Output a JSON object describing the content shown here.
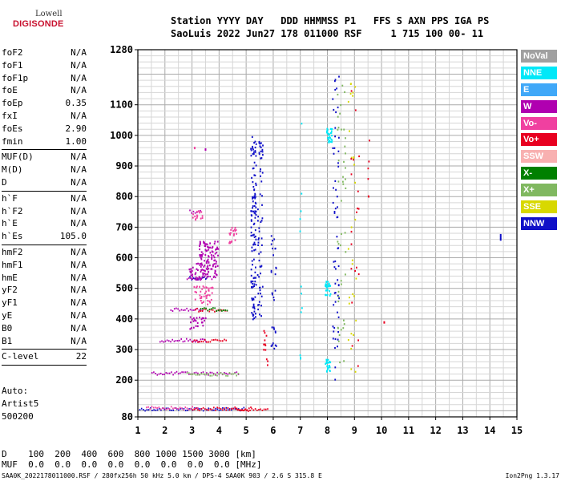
{
  "logo": {
    "line1": "Lowell",
    "line2": "DIGISONDE"
  },
  "header": {
    "row1": "Station YYYY DAY   DDD HHMMSS P1   FFS S AXN PPS IGA PS",
    "row2": "SaoLuis 2022 Jun27 178 011000 RSF     1 715 100 00- 11"
  },
  "params": [
    [
      {
        "name": "foF2",
        "value": "N/A"
      },
      {
        "name": "foF1",
        "value": "N/A"
      },
      {
        "name": "foF1p",
        "value": "N/A"
      },
      {
        "name": "foE",
        "value": "N/A"
      },
      {
        "name": "foEp",
        "value": "0.35"
      },
      {
        "name": "fxI",
        "value": "N/A"
      },
      {
        "name": "foEs",
        "value": "2.90"
      },
      {
        "name": "fmin",
        "value": "1.00"
      }
    ],
    [
      {
        "name": "MUF(D)",
        "value": "N/A"
      },
      {
        "name": "M(D)",
        "value": "N/A"
      },
      {
        "name": "D",
        "value": "N/A"
      }
    ],
    [
      {
        "name": "h`F",
        "value": "N/A"
      },
      {
        "name": "h`F2",
        "value": "N/A"
      },
      {
        "name": "h`E",
        "value": "N/A"
      },
      {
        "name": "h`Es",
        "value": "105.0"
      }
    ],
    [
      {
        "name": "hmF2",
        "value": "N/A"
      },
      {
        "name": "hmF1",
        "value": "N/A"
      },
      {
        "name": "hmE",
        "value": "N/A"
      },
      {
        "name": "yF2",
        "value": "N/A"
      },
      {
        "name": "yF1",
        "value": "N/A"
      },
      {
        "name": "yE",
        "value": "N/A"
      },
      {
        "name": "B0",
        "value": "N/A"
      },
      {
        "name": "B1",
        "value": "N/A"
      }
    ],
    [
      {
        "name": "C-level",
        "value": "22"
      }
    ]
  ],
  "auto": {
    "line1": "Auto:",
    "line2": "Artist5",
    "line3": "500200"
  },
  "bottom": {
    "row1": "D    100  200  400  600  800 1000 1500 3000 [km]",
    "row2": "MUF  0.0  0.0  0.0  0.0  0.0  0.0  0.0  0.0 [MHz]"
  },
  "footer": {
    "left": "SAA0K_2022178011000.RSF / 280fx256h 50 kHz 5.0 km / DPS-4 SAA0K 903 / 2.6 S 315.8 E",
    "right": "Ion2Png 1.3.17"
  },
  "legend": [
    {
      "label": "NoVal",
      "color": "#a0a0a0"
    },
    {
      "label": "NNE",
      "color": "#00e8f8"
    },
    {
      "label": "E",
      "color": "#40a8f8"
    },
    {
      "label": "W",
      "color": "#b000b0"
    },
    {
      "label": "Vo-",
      "color": "#f040a0"
    },
    {
      "label": "Vo+",
      "color": "#e80020"
    },
    {
      "label": "SSW",
      "color": "#f8b0b0"
    },
    {
      "label": "X-",
      "color": "#008000"
    },
    {
      "label": "X+",
      "color": "#80b860"
    },
    {
      "label": "SSE",
      "color": "#d8d800"
    },
    {
      "label": "NNW",
      "color": "#1010c8"
    }
  ],
  "chart_data": {
    "type": "scatter",
    "xlim": [
      1,
      15
    ],
    "ylim": [
      80,
      1280
    ],
    "x_ticks": [
      "1",
      "2",
      "3",
      "4",
      "5",
      "6",
      "7",
      "8",
      "9",
      "10",
      "11",
      "12",
      "13",
      "14",
      "15"
    ],
    "y_ticks": [
      "80",
      "200",
      "300",
      "400",
      "500",
      "600",
      "700",
      "800",
      "900",
      "1000",
      "1100",
      "1280"
    ],
    "x_tick_values": [
      1,
      2,
      3,
      4,
      5,
      6,
      7,
      8,
      9,
      10,
      11,
      12,
      13,
      14,
      15
    ],
    "y_tick_values": [
      80,
      200,
      300,
      400,
      500,
      600,
      700,
      800,
      900,
      1000,
      1100,
      1280
    ],
    "grid": true,
    "segments": [
      {
        "x1": 1.05,
        "x2": 4.9,
        "y": 105,
        "color": "#1010c8"
      },
      {
        "x1": 1.3,
        "x2": 3.2,
        "y": 108,
        "color": "#f040a0"
      },
      {
        "x1": 3.0,
        "x2": 5.2,
        "y": 106,
        "color": "#e80020"
      },
      {
        "x1": 4.6,
        "x2": 5.8,
        "y": 103,
        "color": "#e80020"
      },
      {
        "x1": 1.5,
        "x2": 4.7,
        "y": 222,
        "color": "#b000b0"
      },
      {
        "x1": 2.8,
        "x2": 4.7,
        "y": 219,
        "color": "#80b860"
      },
      {
        "x1": 1.8,
        "x2": 3.5,
        "y": 330,
        "color": "#b000b0"
      },
      {
        "x1": 3.0,
        "x2": 4.3,
        "y": 328,
        "color": "#e80020"
      },
      {
        "x1": 2.2,
        "x2": 3.4,
        "y": 430,
        "color": "#b000b0"
      },
      {
        "x1": 3.1,
        "x2": 4.3,
        "y": 429,
        "color": "#e80020"
      },
      {
        "x1": 3.3,
        "x2": 4.3,
        "y": 431,
        "color": "#008000"
      },
      {
        "x1": 2.8,
        "x2": 3.9,
        "y": 535,
        "color": "#b000b0"
      },
      {
        "x1": 2.9,
        "x2": 3.6,
        "y": 533,
        "color": "#1010c8"
      },
      {
        "x1": 2.9,
        "x2": 3.3,
        "y": 750,
        "color": "#b000b0"
      }
    ],
    "clusters": [
      {
        "x": 3.6,
        "y": 600,
        "w": 0.7,
        "h": 120,
        "color": "#b000b0",
        "n": 110
      },
      {
        "x": 3.4,
        "y": 480,
        "w": 0.7,
        "h": 60,
        "color": "#f040a0",
        "n": 40
      },
      {
        "x": 3.2,
        "y": 390,
        "w": 0.6,
        "h": 40,
        "color": "#b000b0",
        "n": 25
      },
      {
        "x": 3.1,
        "y": 560,
        "w": 0.5,
        "h": 60,
        "color": "#b000b0",
        "n": 25
      },
      {
        "x": 4.5,
        "y": 680,
        "w": 0.3,
        "h": 60,
        "color": "#f040a0",
        "n": 20
      },
      {
        "x": 3.2,
        "y": 740,
        "w": 0.4,
        "h": 30,
        "color": "#f040a0",
        "n": 15
      },
      {
        "x": 5.25,
        "y": 700,
        "w": 0.2,
        "h": 600,
        "color": "#1010c8",
        "n": 120
      },
      {
        "x": 5.5,
        "y": 700,
        "w": 0.2,
        "h": 600,
        "color": "#1010c8",
        "n": 60
      },
      {
        "x": 5.7,
        "y": 300,
        "w": 0.15,
        "h": 150,
        "color": "#e80020",
        "n": 12
      },
      {
        "x": 6.0,
        "y": 500,
        "w": 0.2,
        "h": 400,
        "color": "#1010c8",
        "n": 30
      },
      {
        "x": 8.05,
        "y": 1000,
        "w": 0.2,
        "h": 50,
        "color": "#00e8f8",
        "n": 30
      },
      {
        "x": 8.0,
        "y": 500,
        "w": 0.2,
        "h": 50,
        "color": "#00e8f8",
        "n": 30
      },
      {
        "x": 8.0,
        "y": 250,
        "w": 0.2,
        "h": 40,
        "color": "#00e8f8",
        "n": 25
      },
      {
        "x": 8.3,
        "y": 700,
        "w": 0.25,
        "h": 1000,
        "color": "#1010c8",
        "n": 60
      },
      {
        "x": 8.5,
        "y": 700,
        "w": 0.3,
        "h": 1000,
        "color": "#80b860",
        "n": 45
      },
      {
        "x": 8.9,
        "y": 700,
        "w": 0.3,
        "h": 1000,
        "color": "#d8d800",
        "n": 30
      },
      {
        "x": 9.0,
        "y": 700,
        "w": 0.3,
        "h": 1000,
        "color": "#e80020",
        "n": 20
      },
      {
        "x": 7.0,
        "y": 700,
        "w": 0.1,
        "h": 1000,
        "color": "#00e8f8",
        "n": 12
      },
      {
        "x": 9.5,
        "y": 900,
        "w": 0.1,
        "h": 200,
        "color": "#e80020",
        "n": 6
      }
    ],
    "points": [
      {
        "x": 14.4,
        "y": 675,
        "color": "#1010c8"
      },
      {
        "x": 14.4,
        "y": 668,
        "color": "#1010c8"
      },
      {
        "x": 14.4,
        "y": 661,
        "color": "#1010c8"
      },
      {
        "x": 10.1,
        "y": 390,
        "color": "#e80020"
      },
      {
        "x": 3.1,
        "y": 960,
        "color": "#f040a0"
      },
      {
        "x": 3.5,
        "y": 955,
        "color": "#b000b0"
      }
    ]
  }
}
